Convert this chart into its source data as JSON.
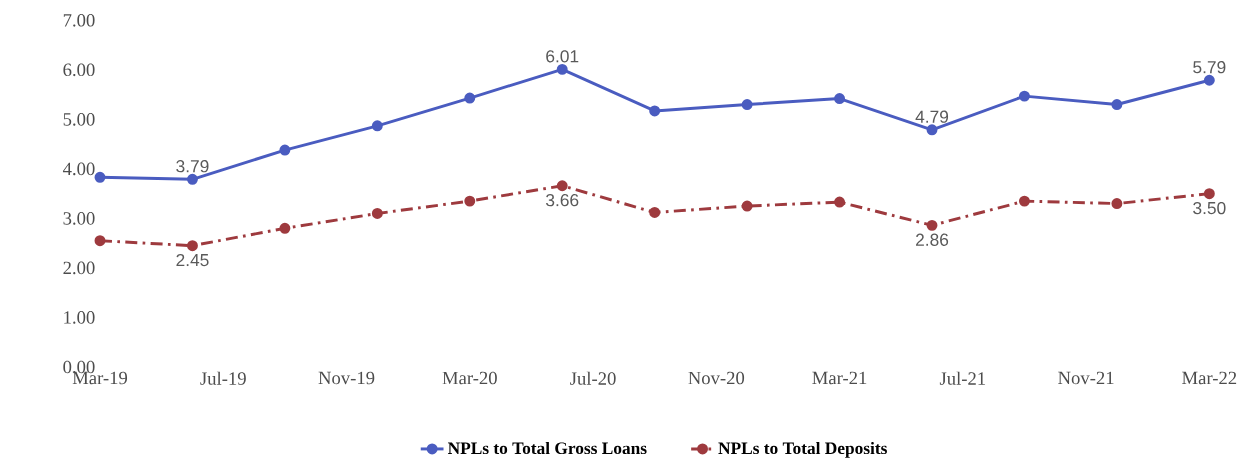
{
  "chart_data": {
    "type": "line",
    "x": [
      "2019-03",
      "2019-06",
      "2019-09",
      "2019-12",
      "2020-03",
      "2020-06",
      "2020-09",
      "2020-12",
      "2021-03",
      "2021-06",
      "2021-09",
      "2021-12",
      "2022-03"
    ],
    "series": [
      {
        "name": "NPLs to Total Gross Loans",
        "color": "#4a5cc0",
        "line_style": "solid",
        "values": [
          3.83,
          3.79,
          4.38,
          4.87,
          5.43,
          6.01,
          5.17,
          5.3,
          5.42,
          4.79,
          5.47,
          5.3,
          5.79
        ],
        "value_labels": [
          null,
          "3.79",
          null,
          null,
          null,
          "6.01",
          null,
          null,
          null,
          "4.79",
          null,
          null,
          "5.79"
        ]
      },
      {
        "name": "NPLs to Total Deposits",
        "color": "#9e3a3e",
        "line_style": "dashed",
        "values": [
          2.55,
          2.45,
          2.8,
          3.1,
          3.35,
          3.66,
          3.12,
          3.25,
          3.33,
          2.86,
          3.35,
          3.3,
          3.5
        ],
        "value_labels": [
          null,
          "2.45",
          null,
          null,
          null,
          "3.66",
          null,
          null,
          null,
          "2.86",
          null,
          null,
          "3.50"
        ]
      }
    ],
    "marker": "circle",
    "grid": false,
    "legend": "bottom",
    "xlim": [
      "2019-03",
      "2022-03"
    ],
    "xticks": [
      {
        "value": "2019-03",
        "label": "Mar-19"
      },
      {
        "value": "2019-07",
        "label": "Jul-19"
      },
      {
        "value": "2019-11",
        "label": "Nov-19"
      },
      {
        "value": "2020-03",
        "label": "Mar-20"
      },
      {
        "value": "2020-07",
        "label": "Jul-20"
      },
      {
        "value": "2020-11",
        "label": "Nov-20"
      },
      {
        "value": "2021-03",
        "label": "Mar-21"
      },
      {
        "value": "2021-07",
        "label": "Jul-21"
      },
      {
        "value": "2021-11",
        "label": "Nov-21"
      },
      {
        "value": "2022-03",
        "label": "Mar-22"
      }
    ],
    "ylim": [
      0,
      7
    ],
    "yticks": [
      {
        "value": 0,
        "label": "0.00"
      },
      {
        "value": 1,
        "label": "1.00"
      },
      {
        "value": 2,
        "label": "2.00"
      },
      {
        "value": 3,
        "label": "3.00"
      },
      {
        "value": 4,
        "label": "4.00"
      },
      {
        "value": 5,
        "label": "5.00"
      },
      {
        "value": 6,
        "label": "6.00"
      },
      {
        "value": 7,
        "label": "7.00"
      }
    ]
  }
}
